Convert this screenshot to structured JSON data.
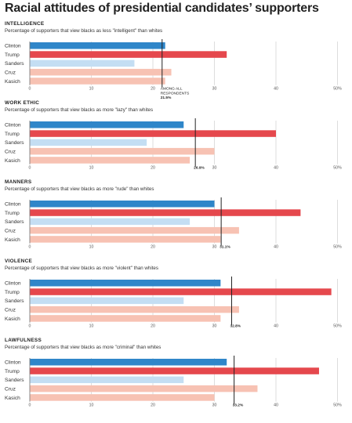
{
  "title": "Racial attitudes of presidential candidates’ supporters",
  "colors": {
    "Clinton": "#2f86c9",
    "Trump": "#e5484d",
    "Sanders": "#c4def3",
    "Cruz": "#f7c2b3",
    "Kasich": "#f7c2b3",
    "grid": "#bbbbbb",
    "axis": "#777777",
    "avg_line": "#222222"
  },
  "chart_data": [
    {
      "type": "bar",
      "orientation": "horizontal",
      "title": "INTELLIGENCE",
      "subtitle": "Percentage of supporters that view blacks as less \"intelligent\" than whites",
      "categories": [
        "Clinton",
        "Trump",
        "Sanders",
        "Cruz",
        "Kasich"
      ],
      "values": [
        22,
        32,
        17,
        23,
        22
      ],
      "average": 21.5,
      "average_label_lines": [
        "AMONG ALL",
        "RESPONDENTS",
        "21.5%"
      ],
      "xlim": [
        0,
        50
      ],
      "tick_labels": [
        "0",
        "10",
        "20",
        "30",
        "40",
        "50%"
      ],
      "tick_values": [
        0,
        10,
        20,
        30,
        40,
        50
      ]
    },
    {
      "type": "bar",
      "orientation": "horizontal",
      "title": "WORK ETHIC",
      "subtitle": "Percentage of supporters that view blacks as more \"lazy\" than whites",
      "categories": [
        "Clinton",
        "Trump",
        "Sanders",
        "Cruz",
        "Kasich"
      ],
      "values": [
        25,
        40,
        19,
        30,
        26
      ],
      "average": 26.9,
      "average_label_lines": [
        "26.9%"
      ],
      "xlim": [
        0,
        50
      ],
      "tick_labels": [
        "0",
        "10",
        "20",
        "30",
        "40",
        "50%"
      ],
      "tick_values": [
        0,
        10,
        20,
        30,
        40,
        50
      ]
    },
    {
      "type": "bar",
      "orientation": "horizontal",
      "title": "MANNERS",
      "subtitle": "Percentage of supporters that view blacks as more \"rude\" than whites",
      "categories": [
        "Clinton",
        "Trump",
        "Sanders",
        "Cruz",
        "Kasich"
      ],
      "values": [
        30,
        44,
        26,
        34,
        31
      ],
      "average": 31.1,
      "average_label_lines": [
        "31.1%"
      ],
      "xlim": [
        0,
        50
      ],
      "tick_labels": [
        "0",
        "10",
        "20",
        "30",
        "40",
        "50%"
      ],
      "tick_values": [
        0,
        10,
        20,
        30,
        40,
        50
      ]
    },
    {
      "type": "bar",
      "orientation": "horizontal",
      "title": "VIOLENCE",
      "subtitle": "Percentage of supporters that view blacks as more \"violent\" than whites",
      "categories": [
        "Clinton",
        "Trump",
        "Sanders",
        "Cruz",
        "Kasich"
      ],
      "values": [
        31,
        49,
        25,
        34,
        31
      ],
      "average": 32.8,
      "average_label_lines": [
        "32.8%"
      ],
      "xlim": [
        0,
        50
      ],
      "tick_labels": [
        "0",
        "10",
        "20",
        "30",
        "40",
        "50%"
      ],
      "tick_values": [
        0,
        10,
        20,
        30,
        40,
        50
      ]
    },
    {
      "type": "bar",
      "orientation": "horizontal",
      "title": "LAWFULNESS",
      "subtitle": "Percentage of supporters that view blacks as more \"criminal\" than whites",
      "categories": [
        "Clinton",
        "Trump",
        "Sanders",
        "Cruz",
        "Kasich"
      ],
      "values": [
        32,
        47,
        25,
        37,
        30
      ],
      "average": 33.2,
      "average_label_lines": [
        "33.2%"
      ],
      "xlim": [
        0,
        50
      ],
      "tick_labels": [
        "0",
        "10",
        "20",
        "30",
        "40",
        "50%"
      ],
      "tick_values": [
        0,
        10,
        20,
        30,
        40,
        50
      ]
    }
  ]
}
